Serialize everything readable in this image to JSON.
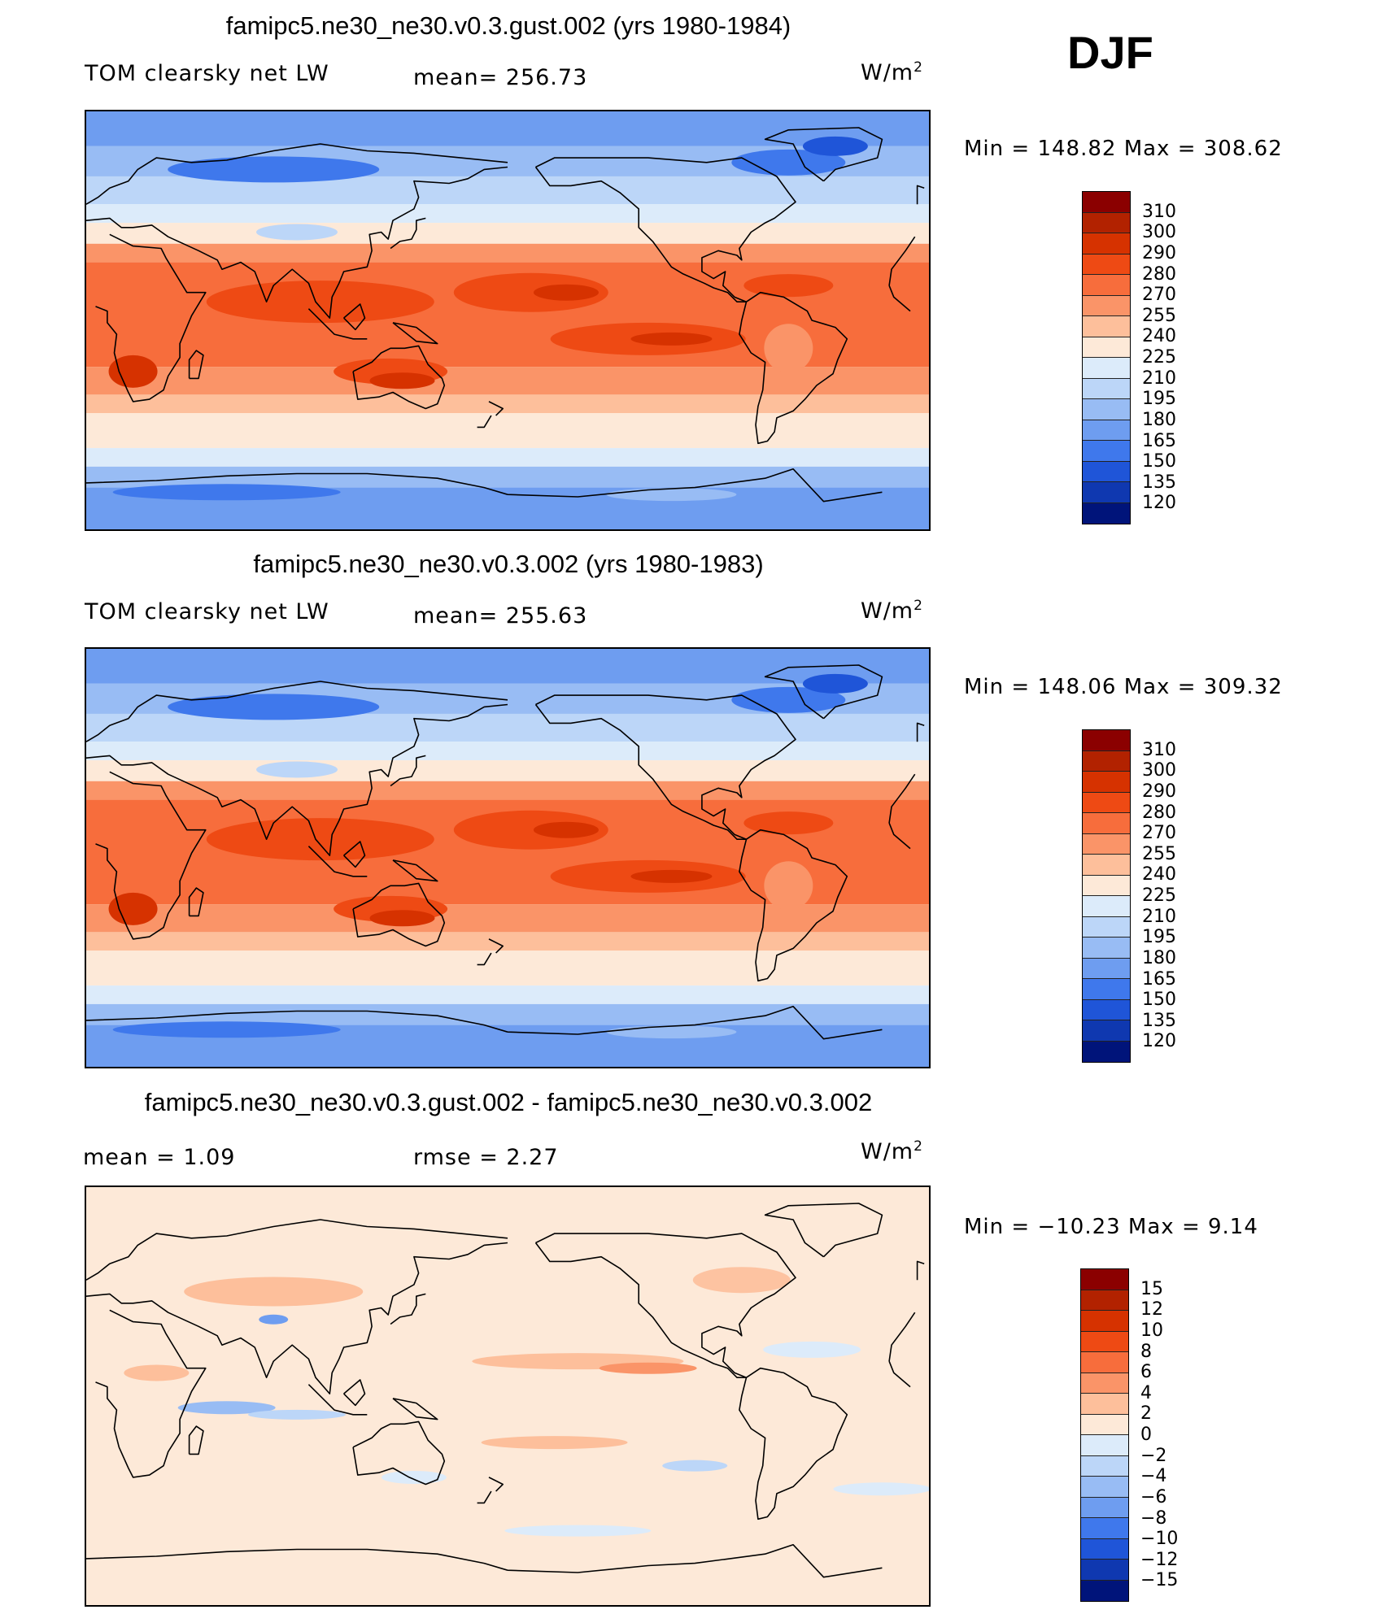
{
  "season": "DJF",
  "panels": [
    {
      "title": "famipc5.ne30_ne30.v0.3.gust.002 (yrs 1980-1984)",
      "left_label": "TOM clearsky net LW",
      "mean_label": "mean= 256.73",
      "units_base": "W/m",
      "units_exp": "2",
      "minmax": "Min = 148.82 Max = 308.62",
      "colorbar_labels": [
        "310",
        "300",
        "290",
        "280",
        "270",
        "255",
        "240",
        "225",
        "210",
        "195",
        "180",
        "165",
        "150",
        "135",
        "120"
      ],
      "colorbar_colors": [
        "#8b0000",
        "#b22200",
        "#d63200",
        "#ee4a14",
        "#f76d3c",
        "#fa9468",
        "#fdbf9b",
        "#fde9d8",
        "#dcebfa",
        "#bcd6f8",
        "#98bcf4",
        "#6e9df0",
        "#3f78ec",
        "#1f55d8",
        "#0f38b0",
        "#00147a"
      ],
      "field": "abs"
    },
    {
      "title": "famipc5.ne30_ne30.v0.3.002 (yrs 1980-1983)",
      "left_label": "TOM clearsky net LW",
      "mean_label": "mean= 255.63",
      "units_base": "W/m",
      "units_exp": "2",
      "minmax": "Min = 148.06 Max = 309.32",
      "colorbar_labels": [
        "310",
        "300",
        "290",
        "280",
        "270",
        "255",
        "240",
        "225",
        "210",
        "195",
        "180",
        "165",
        "150",
        "135",
        "120"
      ],
      "colorbar_colors": [
        "#8b0000",
        "#b22200",
        "#d63200",
        "#ee4a14",
        "#f76d3c",
        "#fa9468",
        "#fdbf9b",
        "#fde9d8",
        "#dcebfa",
        "#bcd6f8",
        "#98bcf4",
        "#6e9df0",
        "#3f78ec",
        "#1f55d8",
        "#0f38b0",
        "#00147a"
      ],
      "field": "abs"
    },
    {
      "title": "famipc5.ne30_ne30.v0.3.gust.002 - famipc5.ne30_ne30.v0.3.002",
      "left_label": "mean =    1.09",
      "mean_label": "rmse =    2.27",
      "units_base": "W/m",
      "units_exp": "2",
      "minmax": "Min = −10.23 Max =    9.14",
      "colorbar_labels": [
        "15",
        "12",
        "10",
        "8",
        "6",
        "4",
        "2",
        "0",
        "−2",
        "−4",
        "−6",
        "−8",
        "−10",
        "−12",
        "−15"
      ],
      "colorbar_colors": [
        "#8b0000",
        "#b22200",
        "#d63200",
        "#ee4a14",
        "#f76d3c",
        "#fa9468",
        "#fdbf9b",
        "#fde9d8",
        "#dcebfa",
        "#bcd6f8",
        "#98bcf4",
        "#6e9df0",
        "#3f78ec",
        "#1f55d8",
        "#0f38b0",
        "#00147a"
      ],
      "field": "diff"
    }
  ]
}
